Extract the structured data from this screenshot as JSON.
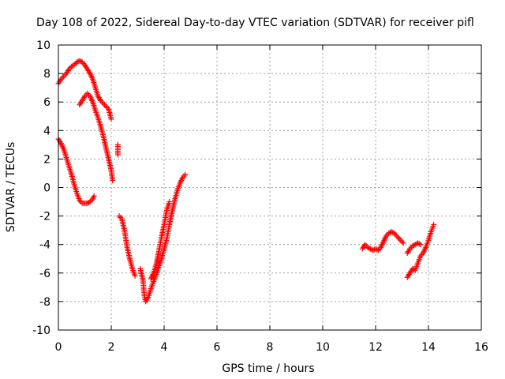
{
  "chart_data": {
    "type": "scatter",
    "title": "Day 108 of 2022, Sidereal Day-to-day VTEC variation (SDTVAR) for receiver pifl",
    "xlabel": "GPS time / hours",
    "ylabel": "SDTVAR / TECUs",
    "xlim": [
      0,
      16
    ],
    "ylim": [
      -10,
      10
    ],
    "xticks": [
      "0",
      "2",
      "4",
      "6",
      "8",
      "10",
      "12",
      "14",
      "16"
    ],
    "yticks": [
      "-10",
      "-8",
      "-6",
      "-4",
      "-2",
      "0",
      "2",
      "4",
      "6",
      "8",
      "10"
    ],
    "grid": true,
    "marker": "plus",
    "color": "#ff0000",
    "series": [
      {
        "points": [
          [
            0.0,
            7.3
          ],
          [
            0.1,
            7.6
          ],
          [
            0.2,
            7.8
          ],
          [
            0.3,
            8.0
          ],
          [
            0.4,
            8.3
          ],
          [
            0.5,
            8.5
          ],
          [
            0.6,
            8.6
          ],
          [
            0.7,
            8.8
          ],
          [
            0.8,
            8.9
          ],
          [
            0.9,
            8.8
          ],
          [
            1.0,
            8.6
          ],
          [
            1.1,
            8.3
          ],
          [
            1.2,
            8.0
          ],
          [
            1.3,
            7.6
          ],
          [
            1.4,
            7.0
          ],
          [
            1.5,
            6.4
          ],
          [
            1.6,
            6.1
          ],
          [
            1.7,
            5.9
          ],
          [
            1.8,
            5.7
          ],
          [
            1.9,
            5.5
          ],
          [
            2.0,
            4.8
          ]
        ]
      },
      {
        "points": [
          [
            0.8,
            5.8
          ],
          [
            0.9,
            6.1
          ],
          [
            1.0,
            6.4
          ],
          [
            1.1,
            6.6
          ],
          [
            1.2,
            6.4
          ],
          [
            1.3,
            6.0
          ],
          [
            1.4,
            5.4
          ],
          [
            1.5,
            4.9
          ],
          [
            1.6,
            4.3
          ],
          [
            1.7,
            3.6
          ],
          [
            1.8,
            2.8
          ],
          [
            1.9,
            2.0
          ],
          [
            2.0,
            1.2
          ],
          [
            2.05,
            0.5
          ]
        ]
      },
      {
        "points": [
          [
            0.0,
            3.4
          ],
          [
            0.1,
            3.1
          ],
          [
            0.2,
            2.7
          ],
          [
            0.3,
            2.1
          ],
          [
            0.4,
            1.5
          ],
          [
            0.5,
            0.9
          ],
          [
            0.6,
            0.2
          ],
          [
            0.7,
            -0.4
          ],
          [
            0.8,
            -0.9
          ],
          [
            0.9,
            -1.1
          ],
          [
            1.0,
            -1.1
          ],
          [
            1.1,
            -1.1
          ],
          [
            1.2,
            -1.0
          ],
          [
            1.3,
            -0.8
          ],
          [
            1.35,
            -0.6
          ]
        ]
      },
      {
        "points": [
          [
            2.25,
            3.0
          ],
          [
            2.25,
            2.3
          ]
        ]
      },
      {
        "points": [
          [
            2.3,
            -2.0
          ],
          [
            2.4,
            -2.2
          ],
          [
            2.5,
            -3.0
          ],
          [
            2.6,
            -4.2
          ],
          [
            2.7,
            -5.0
          ],
          [
            2.8,
            -5.7
          ],
          [
            2.9,
            -6.2
          ]
        ]
      },
      {
        "points": [
          [
            3.1,
            -5.7
          ],
          [
            3.2,
            -6.5
          ],
          [
            3.25,
            -7.6
          ],
          [
            3.3,
            -8.0
          ],
          [
            3.4,
            -7.7
          ],
          [
            3.5,
            -7.1
          ],
          [
            3.6,
            -6.6
          ],
          [
            3.7,
            -6.1
          ],
          [
            3.8,
            -5.6
          ],
          [
            3.9,
            -5.0
          ],
          [
            4.0,
            -4.3
          ],
          [
            4.1,
            -3.6
          ],
          [
            4.2,
            -2.6
          ],
          [
            4.3,
            -1.7
          ],
          [
            4.4,
            -0.9
          ],
          [
            4.5,
            -0.2
          ],
          [
            4.6,
            0.3
          ],
          [
            4.7,
            0.7
          ],
          [
            4.8,
            0.9
          ]
        ]
      },
      {
        "points": [
          [
            3.5,
            -6.4
          ],
          [
            3.6,
            -6.0
          ],
          [
            3.7,
            -5.4
          ],
          [
            3.8,
            -4.5
          ],
          [
            3.9,
            -3.5
          ],
          [
            4.0,
            -2.6
          ],
          [
            4.1,
            -1.6
          ],
          [
            4.2,
            -1.0
          ]
        ]
      },
      {
        "points": [
          [
            11.5,
            -4.3
          ],
          [
            11.6,
            -4.0
          ],
          [
            11.7,
            -4.2
          ],
          [
            11.8,
            -4.3
          ],
          [
            11.9,
            -4.4
          ],
          [
            12.0,
            -4.3
          ],
          [
            12.1,
            -4.4
          ],
          [
            12.2,
            -4.2
          ],
          [
            12.3,
            -3.8
          ],
          [
            12.4,
            -3.4
          ],
          [
            12.5,
            -3.2
          ],
          [
            12.6,
            -3.1
          ],
          [
            12.7,
            -3.2
          ],
          [
            12.8,
            -3.4
          ],
          [
            12.9,
            -3.6
          ],
          [
            13.0,
            -3.8
          ],
          [
            13.05,
            -3.9
          ]
        ]
      },
      {
        "points": [
          [
            13.2,
            -6.3
          ],
          [
            13.3,
            -6.0
          ],
          [
            13.4,
            -5.7
          ],
          [
            13.5,
            -5.8
          ],
          [
            13.6,
            -5.3
          ],
          [
            13.7,
            -4.8
          ],
          [
            13.8,
            -4.6
          ],
          [
            13.9,
            -4.2
          ],
          [
            14.0,
            -3.7
          ],
          [
            14.1,
            -3.1
          ],
          [
            14.2,
            -2.6
          ]
        ]
      },
      {
        "points": [
          [
            13.2,
            -4.6
          ],
          [
            13.3,
            -4.3
          ],
          [
            13.4,
            -4.1
          ],
          [
            13.5,
            -4.0
          ],
          [
            13.6,
            -3.9
          ],
          [
            13.7,
            -4.0
          ]
        ]
      }
    ]
  }
}
